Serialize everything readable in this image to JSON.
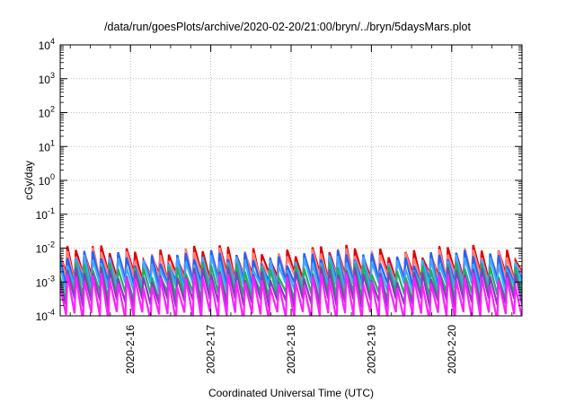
{
  "chart_data": {
    "type": "line",
    "title": "/data/run/goesPlots/archive/2020-02-20/21:00/bryn/../bryn/5daysMars.plot",
    "xlabel": "Coordinated Universal Time (UTC)",
    "ylabel": "cGy/day",
    "y_scale": "log",
    "grid": true,
    "ylim": [
      0.0001,
      10000
    ],
    "xlim": [
      "2020-02-15 03:00",
      "2020-02-20 21:00"
    ],
    "x_ticks": [
      "2020-2-16",
      "2020-2-17",
      "2020-2-18",
      "2020-2-19",
      "2020-2-20"
    ],
    "y_ticks": [
      {
        "base": "10",
        "exp": "4"
      },
      {
        "base": "10",
        "exp": "3"
      },
      {
        "base": "10",
        "exp": "2"
      },
      {
        "base": "10",
        "exp": "1"
      },
      {
        "base": "10",
        "exp": "0"
      },
      {
        "base": "10",
        "exp": "-1"
      },
      {
        "base": "10",
        "exp": "-2"
      },
      {
        "base": "10",
        "exp": "-3"
      },
      {
        "base": "10",
        "exp": "-4"
      }
    ],
    "series": [
      {
        "color": "#e00000",
        "peak": 0.008,
        "trough": 0.0015
      },
      {
        "color": "#ff8080",
        "peak": 0.0065,
        "trough": 0.0013
      },
      {
        "color": "#1e64ff",
        "peak": 0.0055,
        "trough": 0.0009
      },
      {
        "color": "#40a8ff",
        "peak": 0.004,
        "trough": 0.0007
      },
      {
        "color": "#20b060",
        "peak": 0.0025,
        "trough": 0.0004
      },
      {
        "color": "#7f3fbf",
        "peak": 0.0018,
        "trough": 0.00025
      },
      {
        "color": "#ff20ff",
        "peak": 0.0012,
        "trough": 0.0001
      }
    ],
    "cycles_per_day": 9.5
  }
}
